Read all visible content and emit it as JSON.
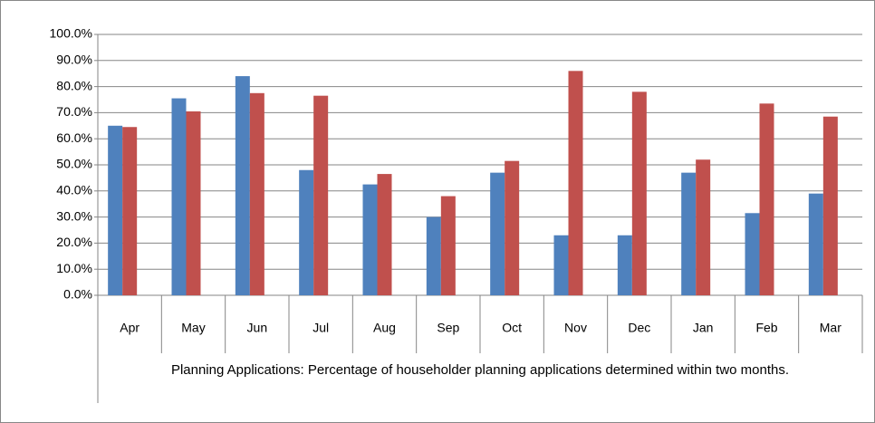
{
  "chart_data": {
    "type": "bar",
    "title": "Planning Applications: Percentage of householder planning applications determined within two months.",
    "categories": [
      "Apr",
      "May",
      "Jun",
      "Jul",
      "Aug",
      "Sep",
      "Oct",
      "Nov",
      "Dec",
      "Jan",
      "Feb",
      "Mar"
    ],
    "series": [
      {
        "color": "#4f81bd",
        "values": [
          65,
          75.5,
          84,
          48,
          42.5,
          30,
          47,
          23,
          23,
          47,
          31.5,
          39
        ]
      },
      {
        "color": "#c0504d",
        "values": [
          64.5,
          70.5,
          77.5,
          76.5,
          46.5,
          38,
          51.5,
          86,
          78,
          52,
          73.5,
          68.5
        ]
      }
    ],
    "ylim": [
      0,
      100
    ],
    "yticks": [
      {
        "value": 0,
        "label": "0.0%"
      },
      {
        "value": 10,
        "label": "10.0%"
      },
      {
        "value": 20,
        "label": "20.0%"
      },
      {
        "value": 30,
        "label": "30.0%"
      },
      {
        "value": 40,
        "label": "40.0%"
      },
      {
        "value": 50,
        "label": "50.0%"
      },
      {
        "value": 60,
        "label": "60.0%"
      },
      {
        "value": 70,
        "label": "70.0%"
      },
      {
        "value": 80,
        "label": "80.0%"
      },
      {
        "value": 90,
        "label": "90.0%"
      },
      {
        "value": 100,
        "label": "100.0%"
      }
    ],
    "grid": true
  }
}
